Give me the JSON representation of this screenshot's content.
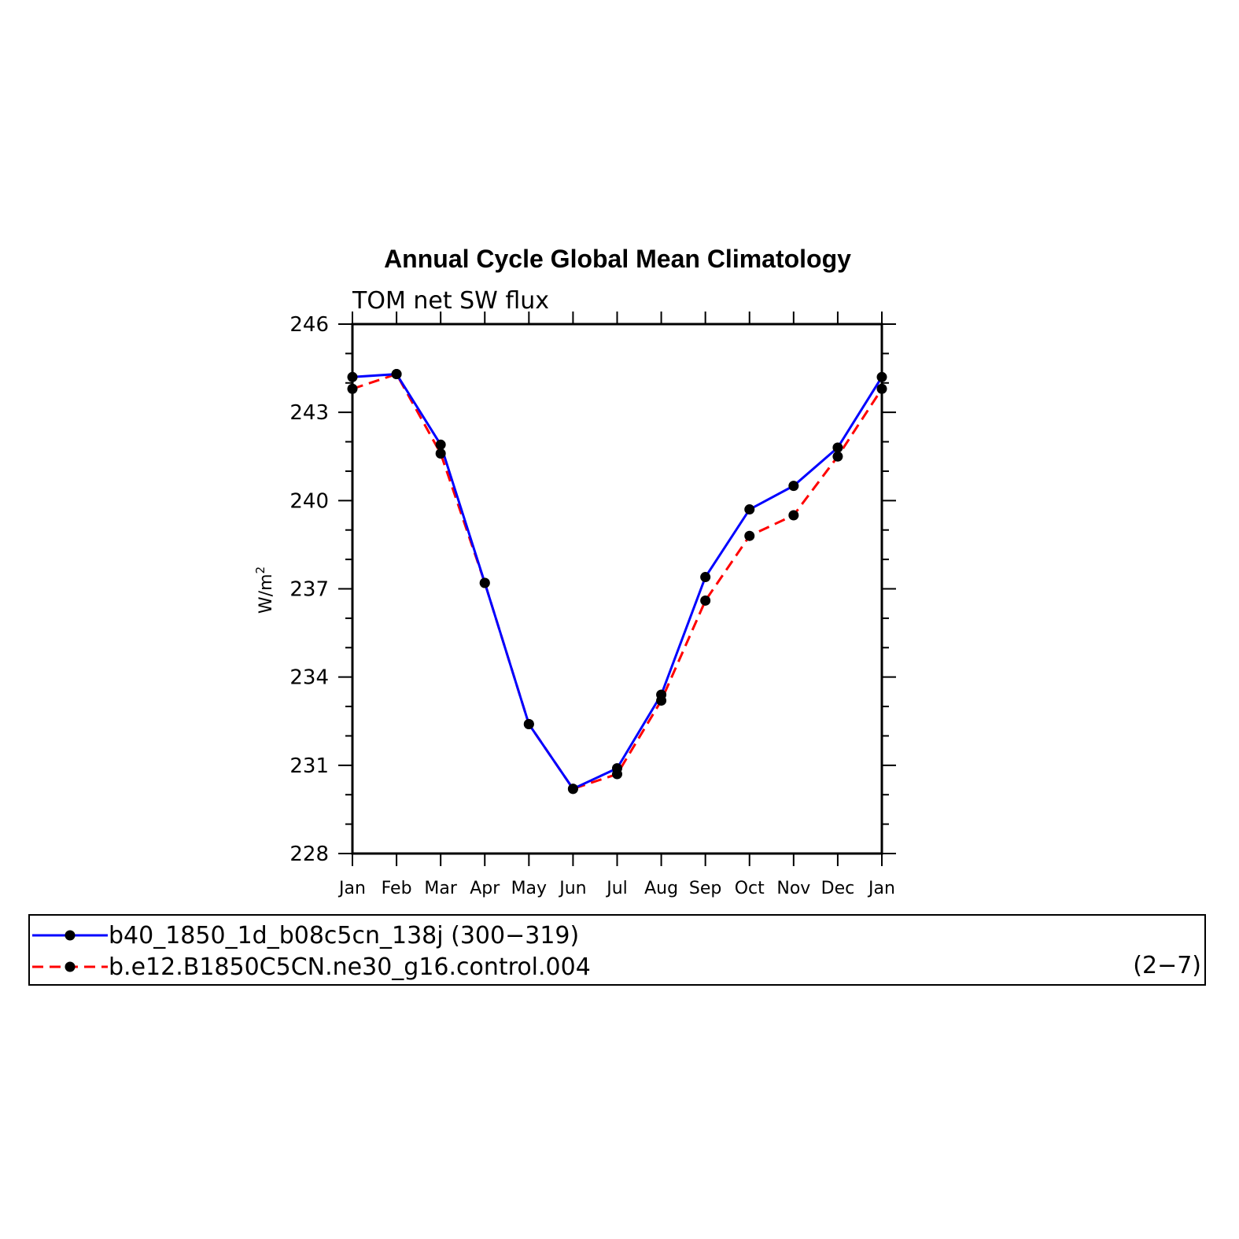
{
  "chart_data": {
    "type": "line",
    "title": "Annual Cycle Global Mean Climatology",
    "subtitle": "TOM net SW flux",
    "ylabel": "W/m",
    "ylabel_superscript": "2",
    "xlabel": "",
    "categories": [
      "Jan",
      "Feb",
      "Mar",
      "Apr",
      "May",
      "Jun",
      "Jul",
      "Aug",
      "Sep",
      "Oct",
      "Nov",
      "Dec",
      "Jan"
    ],
    "yticks": [
      228,
      231,
      234,
      237,
      240,
      243,
      246
    ],
    "ylim": [
      228,
      246
    ],
    "series": [
      {
        "name": "b40_1850_1d_b08c5cn_138j (300−319)",
        "color": "#0000ff",
        "style": "solid",
        "marker": "filled-circle",
        "values": [
          244.2,
          244.3,
          241.9,
          237.2,
          232.4,
          230.2,
          230.9,
          233.4,
          237.4,
          239.7,
          240.5,
          241.8,
          244.2
        ]
      },
      {
        "name": "b.e12.B1850C5CN.ne30_g16.control.004",
        "color": "#ff0000",
        "style": "dashed",
        "marker": "filled-circle",
        "values": [
          243.8,
          244.3,
          241.6,
          237.2,
          232.4,
          230.2,
          230.7,
          233.2,
          236.6,
          238.8,
          239.5,
          241.5,
          243.8
        ]
      }
    ],
    "legend_note": "(2−7)",
    "grid": false,
    "legend_position": "bottom"
  }
}
